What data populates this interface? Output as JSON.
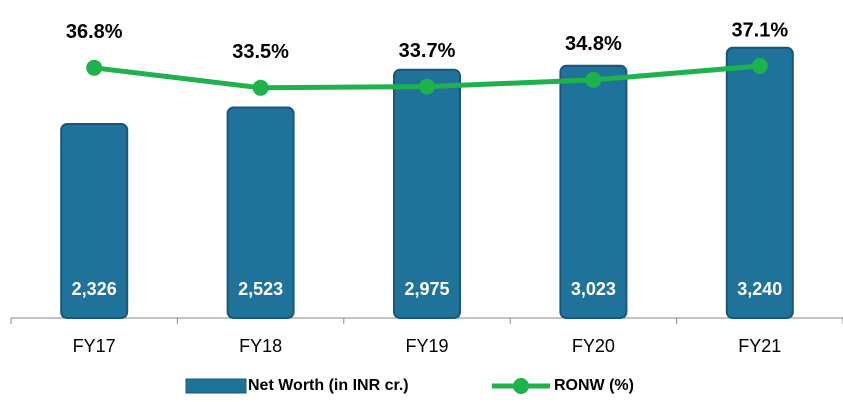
{
  "chart_data": {
    "type": "bar",
    "categories": [
      "FY17",
      "FY18",
      "FY19",
      "FY20",
      "FY21"
    ],
    "series": [
      {
        "name": "Net Worth (in INR cr.)",
        "type": "bar",
        "color": "#1f739b",
        "values": [
          2326,
          2523,
          2975,
          3023,
          3240
        ],
        "value_labels": [
          "2,326",
          "2,523",
          "2,975",
          "3,023",
          "3,240"
        ]
      },
      {
        "name": "RONW (%)",
        "type": "line",
        "axis": "y2",
        "color": "#1db24b",
        "values": [
          36.8,
          33.5,
          33.7,
          34.8,
          37.1
        ],
        "value_labels": [
          "36.8%",
          "33.5%",
          "33.7%",
          "34.8%",
          "37.1%"
        ]
      }
    ],
    "ylim": [
      0,
      3500
    ],
    "y2lim": [
      -4.5,
      43.7
    ]
  }
}
